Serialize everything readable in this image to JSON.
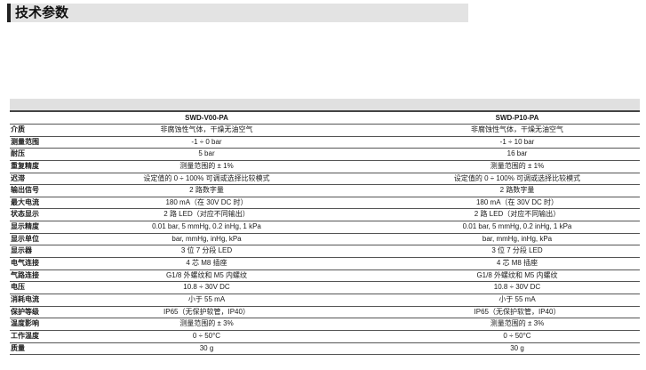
{
  "title": "技术参数",
  "table": {
    "columns": [
      "SWD-V00-PA",
      "SWD-P10-PA"
    ],
    "rows": [
      {
        "label": "介质",
        "v1": "非腐蚀性气体，干燥无油空气",
        "v2": "非腐蚀性气体，干燥无油空气"
      },
      {
        "label": "测量范围",
        "v1": "-1 ÷ 0 bar",
        "v2": "-1 ÷ 10 bar"
      },
      {
        "label": "耐压",
        "v1": "5 bar",
        "v2": "16 bar"
      },
      {
        "label": "重复精度",
        "v1": "测量范围的 ± 1%",
        "v2": "测量范围的 ± 1%"
      },
      {
        "label": "迟滞",
        "v1": "设定值的 0 ÷ 100% 可调或选择比较模式",
        "v2": "设定值的 0 ÷ 100% 可调或选择比较模式"
      },
      {
        "label": "输出信号",
        "v1": "2 路数字量",
        "v2": "2 路数字量"
      },
      {
        "label": "最大电流",
        "v1": "180 mA（在 30V DC 时）",
        "v2": "180 mA（在 30V DC 时）"
      },
      {
        "label": "状态显示",
        "v1": "2 路 LED（对应不同输出）",
        "v2": "2 路 LED（对应不同输出）"
      },
      {
        "label": "显示精度",
        "v1": "0.01 bar, 5 mmHg, 0.2 inHg, 1 kPa",
        "v2": "0.01 bar, 5 mmHg, 0.2 inHg, 1 kPa"
      },
      {
        "label": "显示单位",
        "v1": "bar, mmHg, inHg, kPa",
        "v2": "bar, mmHg, inHg, kPa"
      },
      {
        "label": "显示器",
        "v1": "3 位 7 分段 LED",
        "v2": "3 位 7 分段 LED"
      },
      {
        "label": "电气连接",
        "v1": "4 芯 M8 插座",
        "v2": "4 芯 M8 插座"
      },
      {
        "label": "气路连接",
        "v1": "G1/8 外螺纹和 M5 内螺纹",
        "v2": "G1/8 外螺纹和 M5 内螺纹"
      },
      {
        "label": "电压",
        "v1": "10.8 ÷ 30V DC",
        "v2": "10.8 ÷ 30V DC"
      },
      {
        "label": "消耗电流",
        "v1": "小于 55 mA",
        "v2": "小于 55 mA"
      },
      {
        "label": "保护等级",
        "v1": "IP65（无保护软管，IP40）",
        "v2": "IP65（无保护软管，IP40）"
      },
      {
        "label": "温度影响",
        "v1": "测量范围的 ± 3%",
        "v2": "测量范围的 ± 3%"
      },
      {
        "label": "工作温度",
        "v1": "0 ÷ 50°C",
        "v2": "0 ÷ 50°C"
      },
      {
        "label": "质量",
        "v1": "30 g",
        "v2": "30 g"
      }
    ]
  }
}
